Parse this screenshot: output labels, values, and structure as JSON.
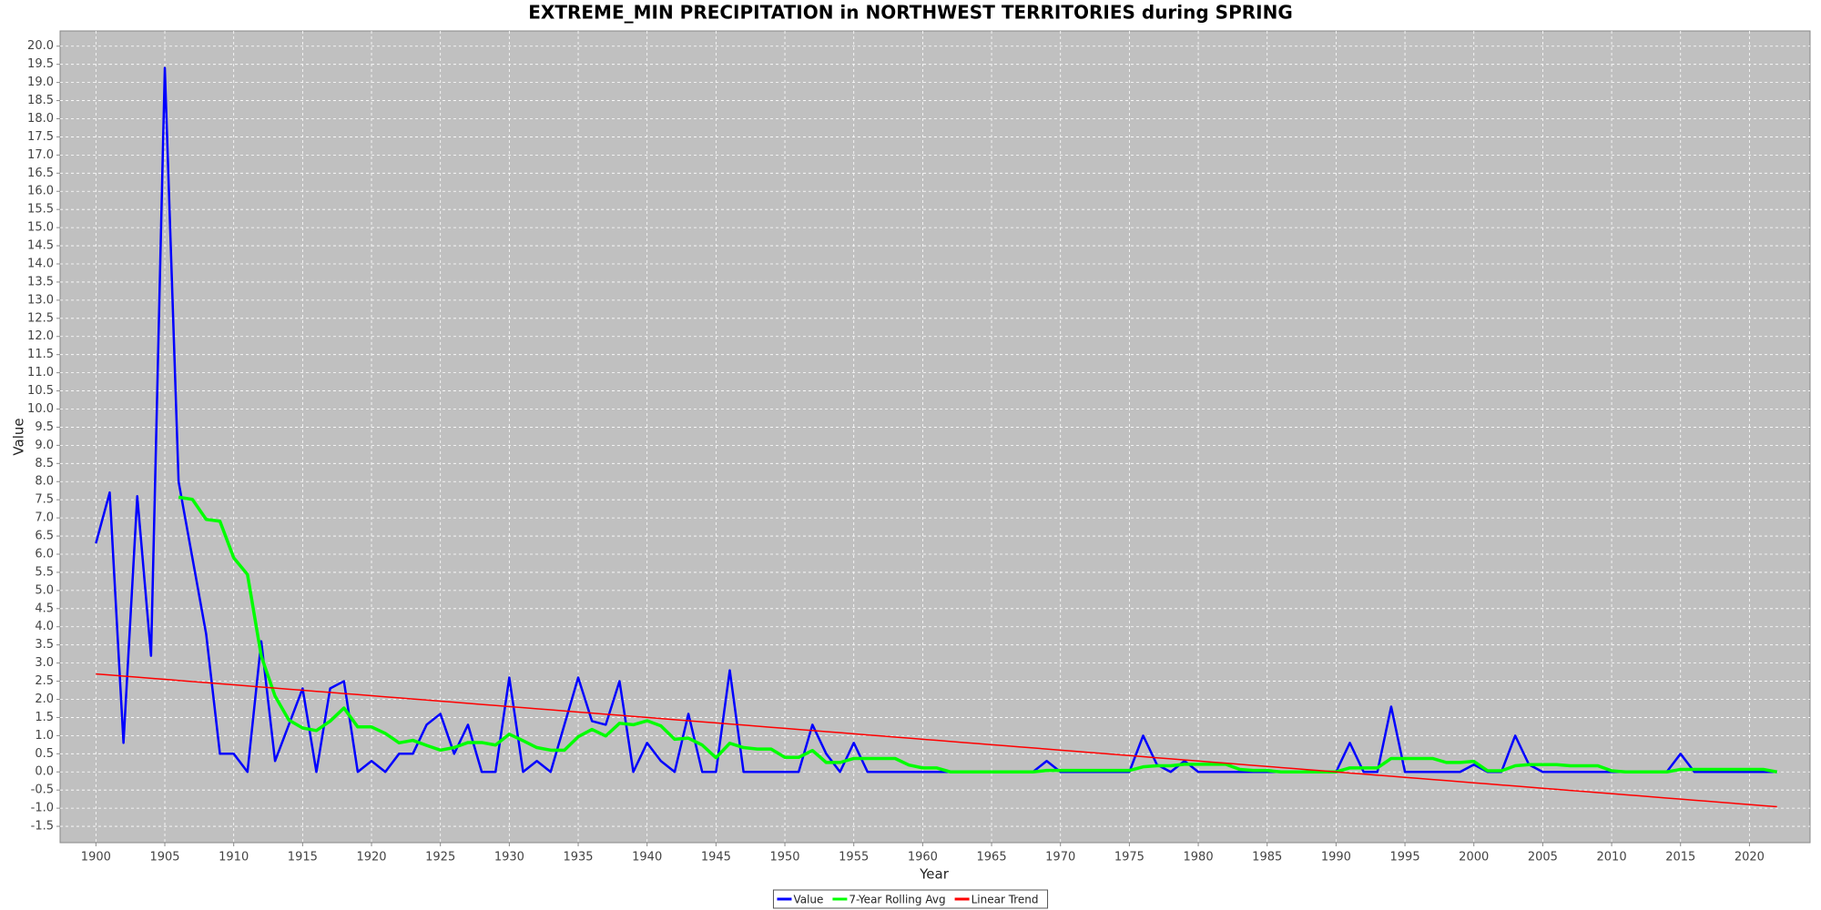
{
  "chart_data": {
    "type": "line",
    "title": "EXTREME_MIN PRECIPITATION in NORTHWEST TERRITORIES during SPRING",
    "x_label": "Year",
    "y_label": "Value",
    "x": [
      1900,
      1901,
      1902,
      1903,
      1904,
      1905,
      1906,
      1907,
      1908,
      1909,
      1910,
      1911,
      1912,
      1913,
      1914,
      1915,
      1916,
      1917,
      1918,
      1919,
      1920,
      1921,
      1922,
      1923,
      1924,
      1925,
      1926,
      1927,
      1928,
      1929,
      1930,
      1931,
      1932,
      1933,
      1934,
      1935,
      1936,
      1937,
      1938,
      1939,
      1940,
      1941,
      1942,
      1943,
      1944,
      1945,
      1946,
      1947,
      1948,
      1949,
      1950,
      1951,
      1952,
      1953,
      1954,
      1955,
      1956,
      1957,
      1958,
      1959,
      1960,
      1961,
      1962,
      1963,
      1964,
      1965,
      1966,
      1967,
      1968,
      1969,
      1970,
      1971,
      1972,
      1973,
      1974,
      1975,
      1976,
      1977,
      1978,
      1979,
      1980,
      1981,
      1982,
      1983,
      1984,
      1985,
      1986,
      1987,
      1988,
      1989,
      1990,
      1991,
      1992,
      1993,
      1994,
      1995,
      1996,
      1997,
      1998,
      1999,
      2000,
      2001,
      2002,
      2003,
      2004,
      2005,
      2006,
      2007,
      2008,
      2009,
      2010,
      2011,
      2012,
      2013,
      2014,
      2015,
      2016,
      2017,
      2018,
      2019,
      2020,
      2021,
      2022
    ],
    "series": [
      {
        "name": "Value",
        "color": "#0000ff",
        "width": 2.5,
        "values": [
          6.3,
          7.7,
          0.8,
          7.6,
          3.2,
          19.4,
          8.0,
          5.9,
          3.8,
          0.5,
          0.5,
          0,
          3.6,
          0.3,
          1.3,
          2.3,
          0,
          2.3,
          2.5,
          0,
          0.3,
          0,
          0.5,
          0.5,
          1.3,
          1.6,
          0.5,
          1.3,
          0,
          0,
          2.6,
          0,
          0.3,
          0,
          1.3,
          2.6,
          1.4,
          1.3,
          2.5,
          0,
          0.8,
          0.3,
          0,
          1.6,
          0,
          0,
          2.8,
          0,
          0,
          0,
          0,
          0,
          1.3,
          0.5,
          0,
          0.8,
          0,
          0,
          0,
          0,
          0,
          0,
          0,
          0,
          0,
          0,
          0,
          0,
          0,
          0.3,
          0,
          0,
          0,
          0,
          0,
          0,
          1.0,
          0.2,
          0,
          0.3,
          0,
          0,
          0,
          0,
          0,
          0,
          0,
          0,
          0,
          0,
          0,
          0.8,
          0,
          0,
          1.8,
          0,
          0,
          0,
          0,
          0,
          0.2,
          0,
          0,
          1.0,
          0.2,
          0,
          0,
          0,
          0,
          0,
          0,
          0,
          0,
          0,
          0,
          0.5,
          0,
          0,
          0,
          0,
          0,
          0,
          0
        ]
      },
      {
        "name": "7-Year Rolling Avg",
        "color": "#00ff00",
        "width": 3.5,
        "values": [
          null,
          null,
          null,
          null,
          null,
          null,
          7.57,
          7.51,
          6.96,
          6.91,
          5.9,
          5.44,
          3.19,
          2.09,
          1.43,
          1.21,
          1.14,
          1.4,
          1.76,
          1.24,
          1.24,
          1.06,
          0.8,
          0.87,
          0.73,
          0.6,
          0.67,
          0.81,
          0.81,
          0.74,
          1.04,
          0.86,
          0.67,
          0.6,
          0.6,
          0.97,
          1.17,
          0.99,
          1.34,
          1.3,
          1.41,
          1.27,
          0.9,
          0.93,
          0.74,
          0.39,
          0.79,
          0.67,
          0.63,
          0.63,
          0.4,
          0.4,
          0.59,
          0.26,
          0.26,
          0.37,
          0.37,
          0.37,
          0.37,
          0.19,
          0.11,
          0.11,
          0,
          0,
          0,
          0,
          0,
          0,
          0,
          0.04,
          0.04,
          0.04,
          0.04,
          0.04,
          0.04,
          0.04,
          0.14,
          0.17,
          0.17,
          0.21,
          0.21,
          0.21,
          0.21,
          0.07,
          0.04,
          0.04,
          0,
          0,
          0,
          0,
          0,
          0.11,
          0.11,
          0.11,
          0.37,
          0.37,
          0.37,
          0.37,
          0.26,
          0.26,
          0.29,
          0.03,
          0.03,
          0.17,
          0.2,
          0.2,
          0.2,
          0.17,
          0.17,
          0.17,
          0.03,
          0,
          0,
          0,
          0,
          0.07,
          0.07,
          0.07,
          0.07,
          0.07,
          0.07,
          0.07,
          0
        ]
      },
      {
        "name": "Linear Trend",
        "color": "#ff0000",
        "width": 1.5,
        "values": [
          2.7,
          2.67,
          2.64,
          2.61,
          2.58,
          2.55,
          2.52,
          2.49,
          2.46,
          2.43,
          2.4,
          2.37,
          2.34,
          2.31,
          2.28,
          2.25,
          2.22,
          2.19,
          2.16,
          2.13,
          2.1,
          2.07,
          2.04,
          2.01,
          1.98,
          1.95,
          1.92,
          1.89,
          1.86,
          1.83,
          1.8,
          1.77,
          1.74,
          1.71,
          1.68,
          1.65,
          1.62,
          1.59,
          1.56,
          1.53,
          1.5,
          1.47,
          1.44,
          1.41,
          1.38,
          1.35,
          1.32,
          1.29,
          1.26,
          1.23,
          1.2,
          1.17,
          1.14,
          1.11,
          1.08,
          1.05,
          1.02,
          0.99,
          0.96,
          0.93,
          0.9,
          0.87,
          0.84,
          0.81,
          0.78,
          0.75,
          0.72,
          0.69,
          0.66,
          0.63,
          0.6,
          0.57,
          0.54,
          0.51,
          0.48,
          0.45,
          0.42,
          0.39,
          0.36,
          0.33,
          0.3,
          0.27,
          0.24,
          0.21,
          0.18,
          0.15,
          0.12,
          0.09,
          0.06,
          0.03,
          0,
          -0.03,
          -0.06,
          -0.09,
          -0.12,
          -0.15,
          -0.18,
          -0.21,
          -0.24,
          -0.27,
          -0.3,
          -0.33,
          -0.36,
          -0.39,
          -0.42,
          -0.45,
          -0.48,
          -0.51,
          -0.54,
          -0.57,
          -0.6,
          -0.63,
          -0.66,
          -0.69,
          -0.72,
          -0.75,
          -0.78,
          -0.81,
          -0.84,
          -0.87,
          -0.9,
          -0.93,
          -0.96
        ]
      }
    ],
    "xlim": [
      1897.4,
      2024.4
    ],
    "xticks": [
      1900,
      1905,
      1910,
      1915,
      1920,
      1925,
      1930,
      1935,
      1940,
      1945,
      1950,
      1955,
      1960,
      1965,
      1970,
      1975,
      1980,
      1985,
      1990,
      1995,
      2000,
      2005,
      2010,
      2015,
      2020
    ],
    "ylim": [
      -1.95,
      20.42
    ],
    "yticks": [
      -1.5,
      {
        "value": -1,
        "label": "-1.0"
      },
      -0.5,
      {
        "value": 0,
        "label": "0.0"
      },
      0.5,
      {
        "value": 1,
        "label": "1.0"
      },
      1.5,
      {
        "value": 2,
        "label": "2.0"
      },
      2.5,
      {
        "value": 3,
        "label": "3.0"
      },
      3.5,
      {
        "value": 4,
        "label": "4.0"
      },
      4.5,
      {
        "value": 5,
        "label": "5.0"
      },
      5.5,
      {
        "value": 6,
        "label": "6.0"
      },
      6.5,
      {
        "value": 7,
        "label": "7.0"
      },
      7.5,
      {
        "value": 8,
        "label": "8.0"
      },
      8.5,
      {
        "value": 9,
        "label": "9.0"
      },
      9.5,
      {
        "value": 10,
        "label": "10.0"
      },
      10.5,
      {
        "value": 11,
        "label": "11.0"
      },
      11.5,
      {
        "value": 12,
        "label": "12.0"
      },
      12.5,
      {
        "value": 13,
        "label": "13.0"
      },
      13.5,
      {
        "value": 14,
        "label": "14.0"
      },
      14.5,
      {
        "value": 15,
        "label": "15.0"
      },
      15.5,
      {
        "value": 16,
        "label": "16.0"
      },
      16.5,
      {
        "value": 17,
        "label": "17.0"
      },
      17.5,
      {
        "value": 18,
        "label": "18.0"
      },
      18.5,
      {
        "value": 19,
        "label": "19.0"
      },
      19.5,
      {
        "value": 20,
        "label": "20.0"
      }
    ],
    "grid": true,
    "legend": "bottom",
    "plot_background": "#c0c0c0"
  }
}
